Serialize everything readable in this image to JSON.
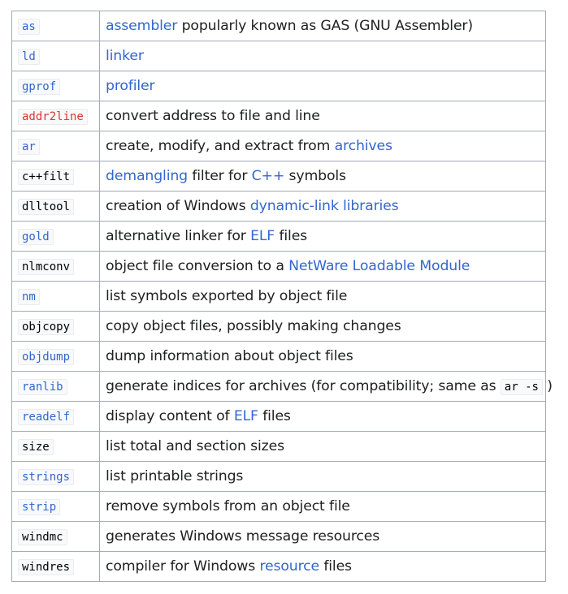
{
  "colors": {
    "link": "#3366cc",
    "redlink": "#dd3333",
    "text": "#202122",
    "border": "#a2a9b1",
    "code_bg": "#f8f9fa"
  },
  "rows": [
    {
      "cmd": "as",
      "desc": [
        {
          "t": "assembler",
          "link": true
        },
        {
          "t": " popularly known as GAS (GNU Assembler)"
        }
      ]
    },
    {
      "cmd": "ld",
      "desc": [
        {
          "t": "linker",
          "link": true
        }
      ]
    },
    {
      "cmd": "gprof",
      "desc": [
        {
          "t": "profiler",
          "link": true
        }
      ]
    },
    {
      "cmd": "addr2line",
      "desc": [
        {
          "t": "convert address to file and line"
        }
      ]
    },
    {
      "cmd": "ar",
      "desc": [
        {
          "t": "create, modify, and extract from "
        },
        {
          "t": "archives",
          "link": true
        }
      ]
    },
    {
      "cmd": "c++filt",
      "desc": [
        {
          "t": "demangling",
          "link": true
        },
        {
          "t": " filter for "
        },
        {
          "t": "C++",
          "link": true
        },
        {
          "t": " symbols"
        }
      ]
    },
    {
      "cmd": "dlltool",
      "desc": [
        {
          "t": "creation of Windows "
        },
        {
          "t": "dynamic-link libraries",
          "link": true
        }
      ]
    },
    {
      "cmd": "gold",
      "desc": [
        {
          "t": "alternative linker for "
        },
        {
          "t": "ELF",
          "link": true
        },
        {
          "t": " files"
        }
      ]
    },
    {
      "cmd": "nlmconv",
      "desc": [
        {
          "t": "object file conversion to a "
        },
        {
          "t": "NetWare Loadable Module",
          "link": true
        }
      ]
    },
    {
      "cmd": "nm",
      "desc": [
        {
          "t": "list symbols exported by object file"
        }
      ]
    },
    {
      "cmd": "objcopy",
      "desc": [
        {
          "t": "copy object files, possibly making changes"
        }
      ]
    },
    {
      "cmd": "objdump",
      "desc": [
        {
          "t": "dump information about object files"
        }
      ]
    },
    {
      "cmd": "ranlib",
      "desc": [
        {
          "t": "generate indices for archives (for compatibility; same as "
        },
        {
          "t": "ar -s",
          "code": true
        },
        {
          "t": " )"
        }
      ]
    },
    {
      "cmd": "readelf",
      "desc": [
        {
          "t": "display content of "
        },
        {
          "t": "ELF",
          "link": true
        },
        {
          "t": " files"
        }
      ]
    },
    {
      "cmd": "size",
      "desc": [
        {
          "t": "list total and section sizes"
        }
      ]
    },
    {
      "cmd": "strings",
      "desc": [
        {
          "t": "list printable strings"
        }
      ]
    },
    {
      "cmd": "strip",
      "desc": [
        {
          "t": "remove symbols from an object file"
        }
      ]
    },
    {
      "cmd": "windmc",
      "desc": [
        {
          "t": "generates Windows message resources"
        }
      ]
    },
    {
      "cmd": "windres",
      "desc": [
        {
          "t": "compiler for Windows "
        },
        {
          "t": "resource",
          "link": true
        },
        {
          "t": " files"
        }
      ]
    }
  ],
  "cmd_style": {
    "as": "link",
    "ld": "link",
    "gprof": "link",
    "addr2line": "red",
    "ar": "link",
    "c++filt": "plain",
    "dlltool": "plain",
    "gold": "link",
    "nlmconv": "plain",
    "nm": "link",
    "objcopy": "plain",
    "objdump": "link",
    "ranlib": "link",
    "readelf": "link",
    "size": "plain",
    "strings": "link",
    "strip": "link",
    "windmc": "plain",
    "windres": "plain"
  }
}
